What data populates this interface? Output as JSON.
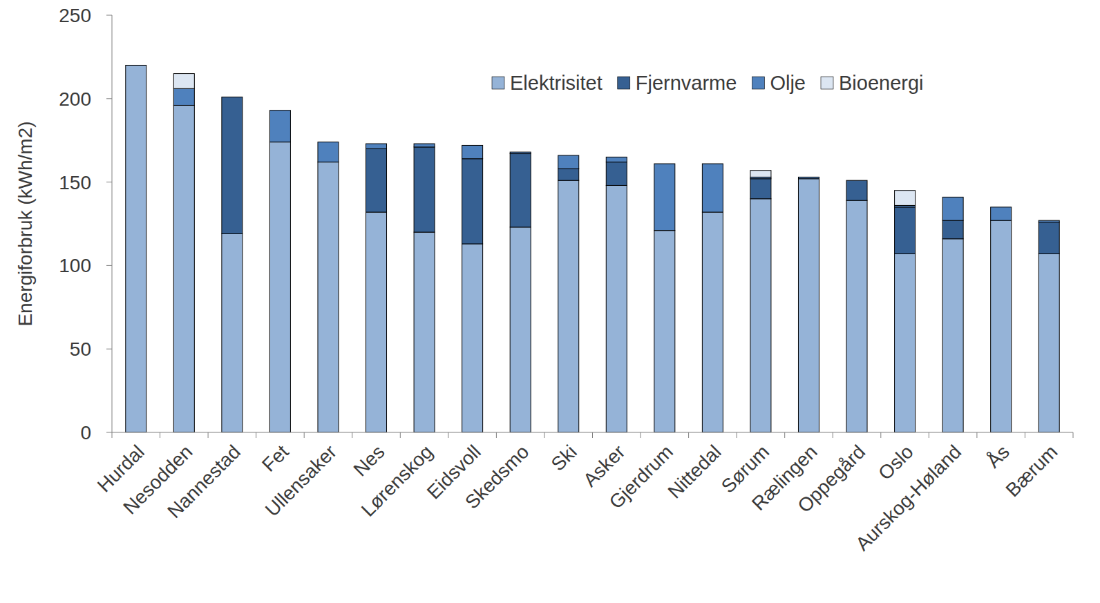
{
  "chart_data": {
    "type": "bar",
    "stacked": true,
    "y_label": "Energiforbruk (kWh/m2)",
    "categories": [
      "Hurdal",
      "Nesodden",
      "Nannestad",
      "Fet",
      "Ullensaker",
      "Nes",
      "Lørenskog",
      "Eidsvoll",
      "Skedsmo",
      "Ski",
      "Asker",
      "Gjerdrum",
      "Nittedal",
      "Sørum",
      "Rælingen",
      "Oppegård",
      "Oslo",
      "Aurskog-Høland",
      "Ås",
      "Bærum"
    ],
    "series": [
      {
        "name": "Elektrisitet",
        "color": "#95b3d7",
        "values": [
          220,
          196,
          119,
          174,
          162,
          132,
          120,
          113,
          123,
          151,
          148,
          121,
          132,
          140,
          152,
          139,
          107,
          116,
          127,
          107
        ]
      },
      {
        "name": "Fjernvarme",
        "color": "#366092",
        "values": [
          0,
          0,
          82,
          0,
          0,
          38,
          51,
          51,
          44,
          7,
          14,
          0,
          0,
          12,
          0,
          12,
          28,
          11,
          0,
          19
        ]
      },
      {
        "name": "Olje",
        "color": "#4f81bd",
        "values": [
          0,
          10,
          0,
          19,
          12,
          3,
          2,
          8,
          1,
          8,
          3,
          40,
          29,
          1,
          1,
          0,
          1,
          14,
          8,
          1
        ]
      },
      {
        "name": "Bioenergi",
        "color": "#dce6f2",
        "values": [
          0,
          9,
          0,
          0,
          0,
          0,
          0,
          0,
          0,
          0,
          0,
          0,
          0,
          4,
          0,
          0,
          9,
          0,
          0,
          0
        ]
      }
    ],
    "ylim": [
      0,
      250
    ],
    "yticks": [
      0,
      50,
      100,
      150,
      200,
      250
    ],
    "legend": "upper right"
  }
}
